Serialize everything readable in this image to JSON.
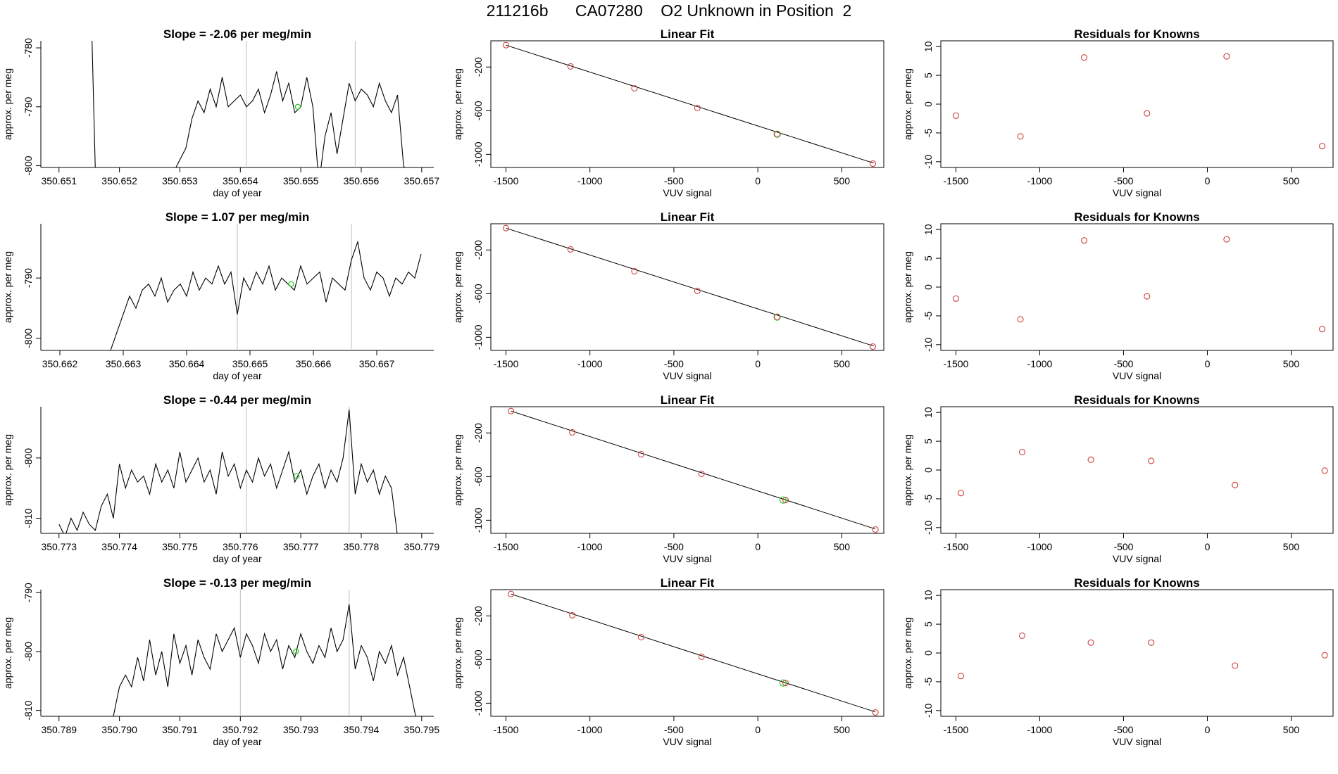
{
  "figure": {
    "title": "211216b      CA07280    O2 Unknown in Position  2"
  },
  "colors": {
    "series": "#000000",
    "fit_line": "#000000",
    "known_points": "#cd4040",
    "unknown_point": "#22cc22",
    "marker_lines": "#bdbdbd"
  },
  "chart_data": [
    {
      "type": "line",
      "panel": "time-1",
      "title": "Slope =  -2.06  per meg/min",
      "xlabel": "day of year",
      "ylabel": "approx. per meg",
      "xlim": [
        350.6507,
        350.6572
      ],
      "ylim": [
        -800.3,
        -778.8
      ],
      "xticks": [
        350.651,
        350.652,
        350.653,
        350.654,
        350.655,
        350.656,
        350.657
      ],
      "xtick_labels": [
        "350.651",
        "350.652",
        "350.653",
        "350.654",
        "350.655",
        "350.656",
        "350.657"
      ],
      "yticks": [
        -800,
        -790,
        -780
      ],
      "ytick_labels": [
        "-800",
        "-790",
        "-780"
      ],
      "vlines": [
        350.6541,
        350.6559
      ],
      "series_x": [
        350.6515,
        350.6516,
        350.6529,
        350.653,
        350.6531,
        350.6532,
        350.6533,
        350.6534,
        350.6535,
        350.6536,
        350.6537,
        350.6538,
        350.6539,
        350.654,
        350.6541,
        350.6542,
        350.6543,
        350.6544,
        350.6545,
        350.6546,
        350.6547,
        350.6548,
        350.6549,
        350.655,
        350.6551,
        350.6552,
        350.6553,
        350.6554,
        350.6555,
        350.6556,
        350.6557,
        350.6558,
        350.6559,
        350.656,
        350.6561,
        350.6562,
        350.6563,
        350.6564,
        350.6565,
        350.6566,
        350.6567,
        350.6568
      ],
      "series_y": [
        -760,
        -800.5,
        -801,
        -799,
        -797,
        -792,
        -789,
        -791,
        -787,
        -790,
        -785,
        -790,
        -789,
        -788,
        -790,
        -789,
        -787,
        -791,
        -788,
        -784,
        -789,
        -786,
        -791,
        -790,
        -785,
        -790,
        -803,
        -795,
        -791,
        -798,
        -792,
        -786,
        -789,
        -787,
        -788,
        -790,
        -786,
        -789,
        -791,
        -788,
        -800,
        -802
      ],
      "unknown_x": [
        350.65495
      ],
      "unknown_y": [
        -790
      ]
    },
    {
      "type": "scatter",
      "panel": "fit-1",
      "title": "Linear Fit",
      "xlabel": "VUV signal",
      "ylabel": "approx. per meg",
      "xlim": [
        -1590,
        750
      ],
      "ylim": [
        -1120,
        40
      ],
      "xticks": [
        -1500,
        -1000,
        -500,
        0,
        500
      ],
      "xtick_labels": [
        "-1500",
        "-1000",
        "-500",
        "0",
        "500"
      ],
      "yticks": [
        -1000,
        -600,
        -200
      ],
      "ytick_labels": [
        "-1000",
        "-600",
        "-200"
      ],
      "fit_line": [
        [
          -1500,
          0
        ],
        [
          690,
          -1080
        ]
      ],
      "knowns_x": [
        -1500,
        -1115,
        -735,
        -360,
        115,
        685
      ],
      "knowns_y": [
        0,
        -195,
        -395,
        -575,
        -815,
        -1085
      ],
      "unknown_x": [
        115
      ],
      "unknown_y": [
        -815
      ]
    },
    {
      "type": "scatter",
      "panel": "resid-1",
      "title": "Residuals for Knowns",
      "xlabel": "VUV signal",
      "ylabel": "approx. per meg",
      "xlim": [
        -1590,
        750
      ],
      "ylim": [
        -11,
        11
      ],
      "xticks": [
        -1500,
        -1000,
        -500,
        0,
        500
      ],
      "xtick_labels": [
        "-1500",
        "-1000",
        "-500",
        "0",
        "500"
      ],
      "yticks": [
        -10,
        -5,
        0,
        5,
        10
      ],
      "ytick_labels": [
        "-10",
        "-5",
        "0",
        "5",
        "10"
      ],
      "x": [
        -1500,
        -1115,
        -735,
        -360,
        115,
        685
      ],
      "y": [
        -2,
        -5.6,
        8.1,
        -1.6,
        8.3,
        -7.3
      ]
    },
    {
      "type": "line",
      "panel": "time-2",
      "title": "Slope =  1.07  per meg/min",
      "xlabel": "day of year",
      "ylabel": "approx. per meg",
      "xlim": [
        350.6617,
        350.6679
      ],
      "ylim": [
        -802,
        -781
      ],
      "xticks": [
        350.662,
        350.663,
        350.664,
        350.665,
        350.666,
        350.667
      ],
      "xtick_labels": [
        "350.662",
        "350.663",
        "350.664",
        "350.665",
        "350.666",
        "350.667"
      ],
      "yticks": [
        -800,
        -790
      ],
      "ytick_labels": [
        "-800",
        "-790"
      ],
      "vlines": [
        350.6648,
        350.6666
      ],
      "series_x": [
        350.6628,
        350.6629,
        350.663,
        350.6631,
        350.6632,
        350.6633,
        350.6634,
        350.6635,
        350.6636,
        350.6637,
        350.6638,
        350.6639,
        350.664,
        350.6641,
        350.6642,
        350.6643,
        350.6644,
        350.6645,
        350.6646,
        350.6647,
        350.6648,
        350.6649,
        350.665,
        350.6651,
        350.6652,
        350.6653,
        350.6654,
        350.6655,
        350.6656,
        350.6657,
        350.6658,
        350.6659,
        350.666,
        350.6661,
        350.6662,
        350.6663,
        350.6664,
        350.6665,
        350.6666,
        350.6667,
        350.6668,
        350.6669,
        350.667,
        350.6671,
        350.6672,
        350.6673,
        350.6674,
        350.6675,
        350.6676,
        350.6677
      ],
      "series_y": [
        -802,
        -799,
        -796,
        -793,
        -795,
        -792,
        -791,
        -793,
        -790,
        -794,
        -792,
        -791,
        -793,
        -789,
        -792,
        -790,
        -791,
        -788,
        -791,
        -789,
        -796,
        -790,
        -792,
        -789,
        -791,
        -788,
        -792,
        -790,
        -791,
        -792,
        -788,
        -791,
        -790,
        -789,
        -794,
        -790,
        -791,
        -792,
        -787,
        -784,
        -790,
        -792,
        -789,
        -790,
        -793,
        -790,
        -791,
        -789,
        -790,
        -786
      ],
      "unknown_x": [
        350.66565
      ],
      "unknown_y": [
        -791
      ]
    },
    {
      "type": "scatter",
      "panel": "fit-2",
      "title": "Linear Fit",
      "xlabel": "VUV signal",
      "ylabel": "approx. per meg",
      "xlim": [
        -1590,
        750
      ],
      "ylim": [
        -1120,
        40
      ],
      "xticks": [
        -1500,
        -1000,
        -500,
        0,
        500
      ],
      "xtick_labels": [
        "-1500",
        "-1000",
        "-500",
        "0",
        "500"
      ],
      "yticks": [
        -1000,
        -600,
        -200
      ],
      "ytick_labels": [
        "-1000",
        "-600",
        "-200"
      ],
      "fit_line": [
        [
          -1500,
          0
        ],
        [
          690,
          -1080
        ]
      ],
      "knowns_x": [
        -1500,
        -1115,
        -735,
        -360,
        115,
        685
      ],
      "knowns_y": [
        0,
        -195,
        -395,
        -575,
        -815,
        -1085
      ],
      "unknown_x": [
        115
      ],
      "unknown_y": [
        -815
      ]
    },
    {
      "type": "scatter",
      "panel": "resid-2",
      "title": "Residuals for Knowns",
      "xlabel": "VUV signal",
      "ylabel": "approx. per meg",
      "xlim": [
        -1590,
        750
      ],
      "ylim": [
        -11,
        11
      ],
      "xticks": [
        -1500,
        -1000,
        -500,
        0,
        500
      ],
      "xtick_labels": [
        "-1500",
        "-1000",
        "-500",
        "0",
        "500"
      ],
      "yticks": [
        -10,
        -5,
        0,
        5,
        10
      ],
      "ytick_labels": [
        "-10",
        "-5",
        "0",
        "5",
        "10"
      ],
      "x": [
        -1500,
        -1115,
        -735,
        -360,
        115,
        685
      ],
      "y": [
        -2,
        -5.6,
        8.1,
        -1.6,
        8.3,
        -7.3
      ]
    },
    {
      "type": "line",
      "panel": "time-3",
      "title": "Slope =  -0.44  per meg/min",
      "xlabel": "day of year",
      "ylabel": "approx. per meg",
      "xlim": [
        350.7727,
        350.7792
      ],
      "ylim": [
        -812.5,
        -791.5
      ],
      "xticks": [
        350.773,
        350.774,
        350.775,
        350.776,
        350.777,
        350.778,
        350.779
      ],
      "xtick_labels": [
        "350.773",
        "350.774",
        "350.775",
        "350.776",
        "350.777",
        "350.778",
        "350.779"
      ],
      "yticks": [
        -810,
        -800
      ],
      "ytick_labels": [
        "-810",
        "-800"
      ],
      "vlines": [
        350.7761,
        350.7778
      ],
      "series_x": [
        350.773,
        350.7731,
        350.7732,
        350.7733,
        350.7734,
        350.7735,
        350.7736,
        350.7737,
        350.7738,
        350.7739,
        350.774,
        350.7741,
        350.7742,
        350.7743,
        350.7744,
        350.7745,
        350.7746,
        350.7747,
        350.7748,
        350.7749,
        350.775,
        350.7751,
        350.7752,
        350.7753,
        350.7754,
        350.7755,
        350.7756,
        350.7757,
        350.7758,
        350.7759,
        350.776,
        350.7761,
        350.7762,
        350.7763,
        350.7764,
        350.7765,
        350.7766,
        350.7767,
        350.7768,
        350.7769,
        350.777,
        350.7771,
        350.7772,
        350.7773,
        350.7774,
        350.7775,
        350.7776,
        350.7777,
        350.7778,
        350.7779,
        350.778,
        350.7781,
        350.7782,
        350.7783,
        350.7784,
        350.7785,
        350.7786
      ],
      "series_y": [
        -811,
        -813,
        -810,
        -812,
        -809,
        -811,
        -812,
        -808,
        -806,
        -810,
        -801,
        -805,
        -802,
        -804,
        -803,
        -806,
        -801,
        -804,
        -802,
        -805,
        -799,
        -804,
        -802,
        -800,
        -804,
        -802,
        -806,
        -799,
        -803,
        -801,
        -805,
        -802,
        -804,
        -800,
        -803,
        -801,
        -805,
        -802,
        -799,
        -804,
        -802,
        -806,
        -803,
        -801,
        -805,
        -802,
        -804,
        -800,
        -792,
        -806,
        -801,
        -804,
        -802,
        -806,
        -803,
        -805,
        -813
      ],
      "unknown_x": [
        350.77693
      ],
      "unknown_y": [
        -803
      ]
    },
    {
      "type": "scatter",
      "panel": "fit-3",
      "title": "Linear Fit",
      "xlabel": "VUV signal",
      "ylabel": "approx. per meg",
      "xlim": [
        -1590,
        750
      ],
      "ylim": [
        -1120,
        40
      ],
      "xticks": [
        -1500,
        -1000,
        -500,
        0,
        500
      ],
      "xtick_labels": [
        "-1500",
        "-1000",
        "-500",
        "0",
        "500"
      ],
      "yticks": [
        -1000,
        -600,
        -200
      ],
      "ytick_labels": [
        "-1000",
        "-600",
        "-200"
      ],
      "fit_line": [
        [
          -1470,
          0
        ],
        [
          700,
          -1080
        ]
      ],
      "knowns_x": [
        -1470,
        -1105,
        -695,
        -335,
        165,
        700
      ],
      "knowns_y": [
        0,
        -195,
        -395,
        -575,
        -815,
        -1085
      ],
      "unknown_x": [
        150
      ],
      "unknown_y": [
        -815
      ]
    },
    {
      "type": "scatter",
      "panel": "resid-3",
      "title": "Residuals for Knowns",
      "xlabel": "VUV signal",
      "ylabel": "approx. per meg",
      "xlim": [
        -1590,
        750
      ],
      "ylim": [
        -11,
        11
      ],
      "xticks": [
        -1500,
        -1000,
        -500,
        0,
        500
      ],
      "xtick_labels": [
        "-1500",
        "-1000",
        "-500",
        "0",
        "500"
      ],
      "yticks": [
        -10,
        -5,
        0,
        5,
        10
      ],
      "ytick_labels": [
        "-10",
        "-5",
        "0",
        "5",
        "10"
      ],
      "x": [
        -1470,
        -1105,
        -695,
        -335,
        165,
        700
      ],
      "y": [
        -4,
        3.1,
        1.8,
        1.6,
        -2.6,
        -0.1
      ]
    },
    {
      "type": "line",
      "panel": "time-4",
      "title": "Slope =  -0.13  per meg/min",
      "xlabel": "day of year",
      "ylabel": "approx. per meg",
      "xlim": [
        350.7887,
        350.7952
      ],
      "ylim": [
        -811,
        -789.5
      ],
      "xticks": [
        350.789,
        350.79,
        350.791,
        350.792,
        350.793,
        350.794,
        350.795
      ],
      "xtick_labels": [
        "350.789",
        "350.790",
        "350.791",
        "350.792",
        "350.793",
        "350.794",
        "350.795"
      ],
      "yticks": [
        -810,
        -800,
        -790
      ],
      "ytick_labels": [
        "-810",
        "-800",
        "-790"
      ],
      "vlines": [
        350.792,
        350.7938
      ],
      "series_x": [
        350.7899,
        350.79,
        350.7901,
        350.7902,
        350.7903,
        350.7904,
        350.7905,
        350.7906,
        350.7907,
        350.7908,
        350.7909,
        350.791,
        350.7911,
        350.7912,
        350.7913,
        350.7914,
        350.7915,
        350.7916,
        350.7917,
        350.7918,
        350.7919,
        350.792,
        350.7921,
        350.7922,
        350.7923,
        350.7924,
        350.7925,
        350.7926,
        350.7927,
        350.7928,
        350.7929,
        350.793,
        350.7931,
        350.7932,
        350.7933,
        350.7934,
        350.7935,
        350.7936,
        350.7937,
        350.7938,
        350.7939,
        350.794,
        350.7941,
        350.7942,
        350.7943,
        350.7944,
        350.7945,
        350.7946,
        350.7947,
        350.7948,
        350.7949
      ],
      "series_y": [
        -811,
        -806,
        -804,
        -806,
        -801,
        -805,
        -798,
        -804,
        -800,
        -806,
        -797,
        -802,
        -799,
        -804,
        -798,
        -801,
        -803,
        -797,
        -800,
        -798,
        -796,
        -801,
        -797,
        -799,
        -802,
        -797,
        -800,
        -798,
        -803,
        -799,
        -801,
        -797,
        -800,
        -802,
        -799,
        -801,
        -796,
        -800,
        -798,
        -792,
        -803,
        -799,
        -801,
        -805,
        -800,
        -802,
        -799,
        -804,
        -801,
        -806,
        -811
      ],
      "unknown_x": [
        350.79292
      ],
      "unknown_y": [
        -800
      ]
    },
    {
      "type": "scatter",
      "panel": "fit-4",
      "title": "Linear Fit",
      "xlabel": "VUV signal",
      "ylabel": "approx. per meg",
      "xlim": [
        -1590,
        750
      ],
      "ylim": [
        -1120,
        40
      ],
      "xticks": [
        -1500,
        -1000,
        -500,
        0,
        500
      ],
      "xtick_labels": [
        "-1500",
        "-1000",
        "-500",
        "0",
        "500"
      ],
      "yticks": [
        -1000,
        -600,
        -200
      ],
      "ytick_labels": [
        "-1000",
        "-600",
        "-200"
      ],
      "fit_line": [
        [
          -1470,
          0
        ],
        [
          700,
          -1080
        ]
      ],
      "knowns_x": [
        -1470,
        -1105,
        -695,
        -335,
        165,
        700
      ],
      "knowns_y": [
        0,
        -195,
        -395,
        -575,
        -815,
        -1085
      ],
      "unknown_x": [
        150
      ],
      "unknown_y": [
        -815
      ]
    },
    {
      "type": "scatter",
      "panel": "resid-4",
      "title": "Residuals for Knowns",
      "xlabel": "VUV signal",
      "ylabel": "approx. per meg",
      "xlim": [
        -1590,
        750
      ],
      "ylim": [
        -11,
        11
      ],
      "xticks": [
        -1500,
        -1000,
        -500,
        0,
        500
      ],
      "xtick_labels": [
        "-1500",
        "-1000",
        "-500",
        "0",
        "500"
      ],
      "yticks": [
        -10,
        -5,
        0,
        5,
        10
      ],
      "ytick_labels": [
        "-10",
        "-5",
        "0",
        "5",
        "10"
      ],
      "x": [
        -1470,
        -1105,
        -695,
        -335,
        165,
        700
      ],
      "y": [
        -4,
        3,
        1.8,
        1.8,
        -2.2,
        -0.4
      ]
    }
  ]
}
